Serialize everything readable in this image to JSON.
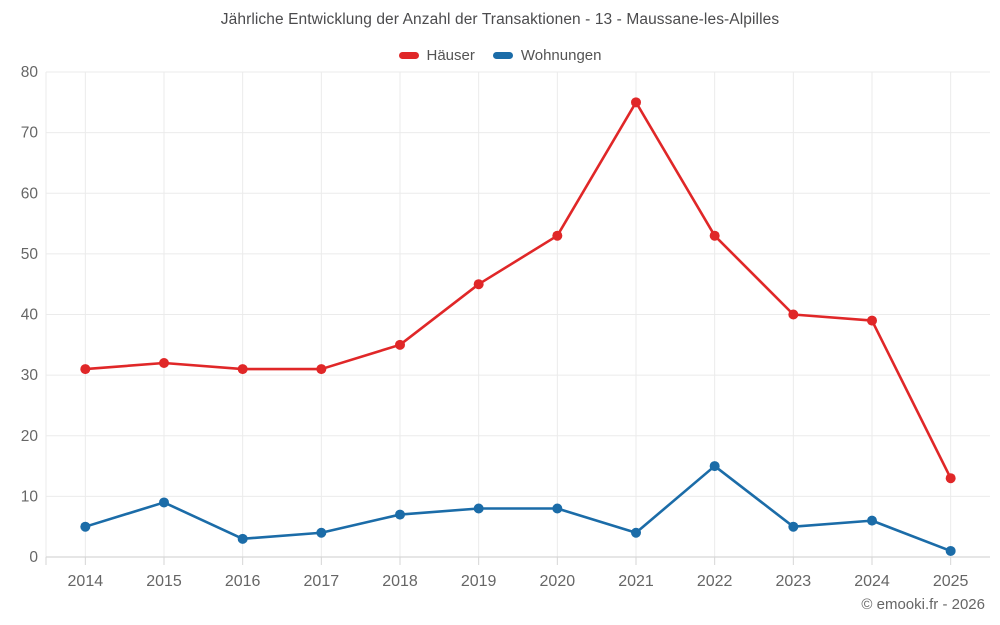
{
  "header": {
    "title": "Jährliche Entwicklung der Anzahl der Transaktionen - 13 - Maussane-les-Alpilles"
  },
  "footer": {
    "credit": "© emooki.fr - 2026"
  },
  "chart_data": {
    "type": "line",
    "title": "Jährliche Entwicklung der Anzahl der Transaktionen - 13 - Maussane-les-Alpilles",
    "categories": [
      "2014",
      "2015",
      "2016",
      "2017",
      "2018",
      "2019",
      "2020",
      "2021",
      "2022",
      "2023",
      "2024",
      "2025"
    ],
    "series": [
      {
        "name": "Häuser",
        "color": "#e02728",
        "values": [
          31,
          32,
          31,
          31,
          35,
          45,
          53,
          75,
          53,
          40,
          39,
          13
        ]
      },
      {
        "name": "Wohnungen",
        "color": "#1b6ca8",
        "values": [
          5,
          9,
          3,
          4,
          7,
          8,
          8,
          4,
          15,
          5,
          6,
          1
        ]
      }
    ],
    "xlabel": "",
    "ylabel": "",
    "ylim": [
      0,
      80
    ],
    "yticks": [
      0,
      10,
      20,
      30,
      40,
      50,
      60,
      70,
      80
    ],
    "grid": true,
    "legend_position": "top",
    "colors": {
      "grid_line": "#ebebeb",
      "axis_line": "#d6d6d6",
      "tick_label": "#666666"
    }
  }
}
